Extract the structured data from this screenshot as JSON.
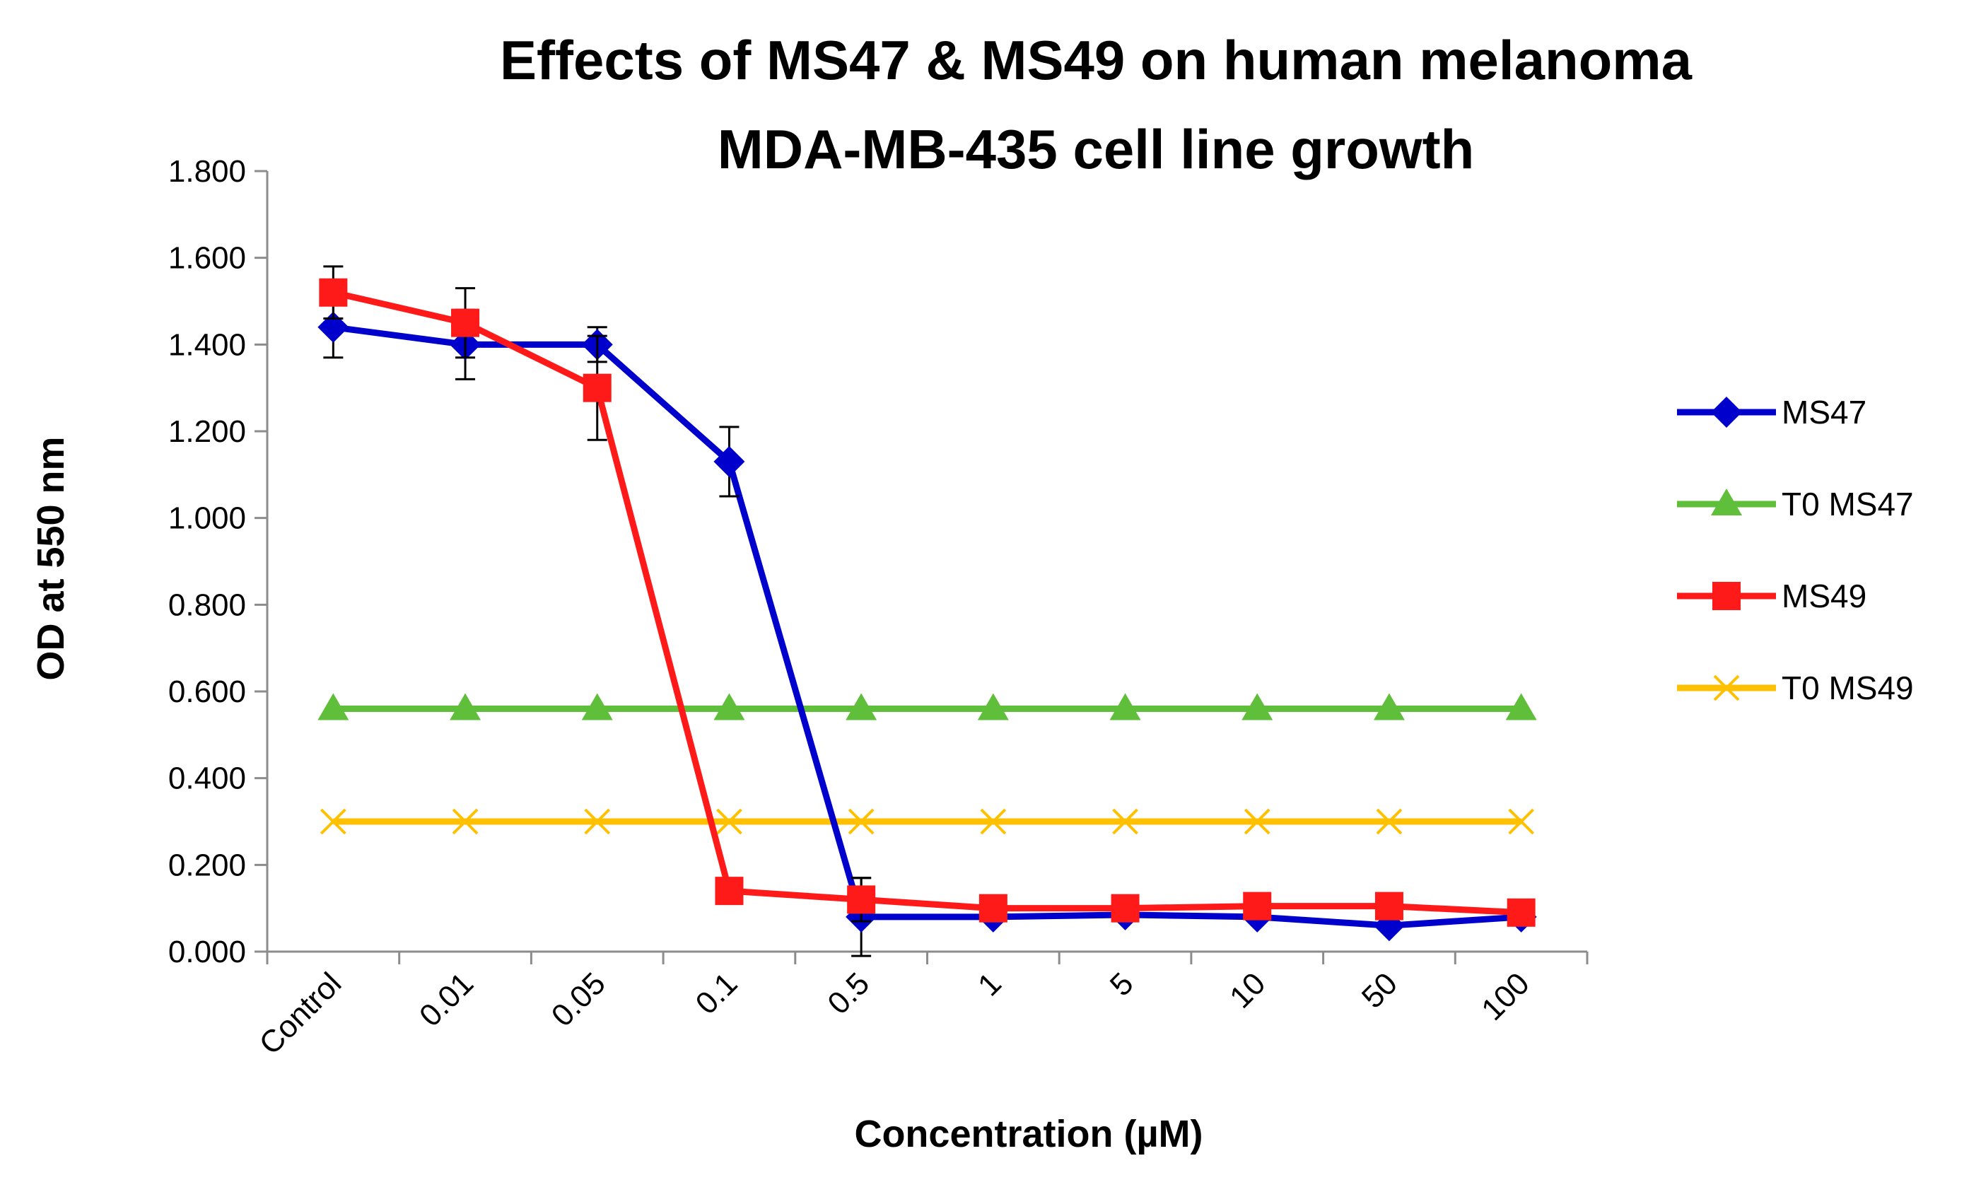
{
  "chart_data": {
    "type": "line",
    "title": [
      "Effects of MS47 & MS49 on human melanoma",
      "MDA-MB-435 cell line growth"
    ],
    "xlabel": "Concentration (µM)",
    "ylabel": "OD at 550 nm",
    "categories": [
      "Control",
      "0.01",
      "0.05",
      "0.1",
      "0.5",
      "1",
      "5",
      "10",
      "50",
      "100"
    ],
    "ylim": [
      0,
      1.8
    ],
    "yticks": [
      "0.000",
      "0.200",
      "0.400",
      "0.600",
      "0.800",
      "1.000",
      "1.200",
      "1.400",
      "1.600",
      "1.800"
    ],
    "legend_position": "right",
    "series": [
      {
        "name": "MS47",
        "color": "#0000cc",
        "marker": "diamond",
        "values": [
          1.44,
          1.4,
          1.4,
          1.13,
          0.08,
          0.08,
          0.085,
          0.08,
          0.06,
          0.08
        ],
        "errors": [
          0.07,
          0.08,
          0.04,
          0.08,
          0.09,
          0.0,
          0.0,
          0.0,
          0.0,
          0.0
        ]
      },
      {
        "name": "T0 MS47",
        "color": "#5fbe3a",
        "marker": "triangle",
        "values": [
          0.56,
          0.56,
          0.56,
          0.56,
          0.56,
          0.56,
          0.56,
          0.56,
          0.56,
          0.56
        ],
        "errors": [
          0,
          0,
          0,
          0,
          0,
          0,
          0,
          0,
          0,
          0
        ]
      },
      {
        "name": "MS49",
        "color": "#ff1a1a",
        "marker": "square",
        "values": [
          1.52,
          1.45,
          1.3,
          0.14,
          0.12,
          0.1,
          0.1,
          0.105,
          0.105,
          0.09
        ],
        "errors": [
          0.06,
          0.08,
          0.12,
          0.0,
          0.05,
          0.0,
          0.0,
          0.0,
          0.0,
          0.0
        ]
      },
      {
        "name": "T0 MS49",
        "color": "#ffc000",
        "marker": "x",
        "values": [
          0.3,
          0.3,
          0.3,
          0.3,
          0.3,
          0.3,
          0.3,
          0.3,
          0.3,
          0.3
        ],
        "errors": [
          0,
          0,
          0,
          0,
          0,
          0,
          0,
          0,
          0,
          0
        ]
      }
    ]
  }
}
